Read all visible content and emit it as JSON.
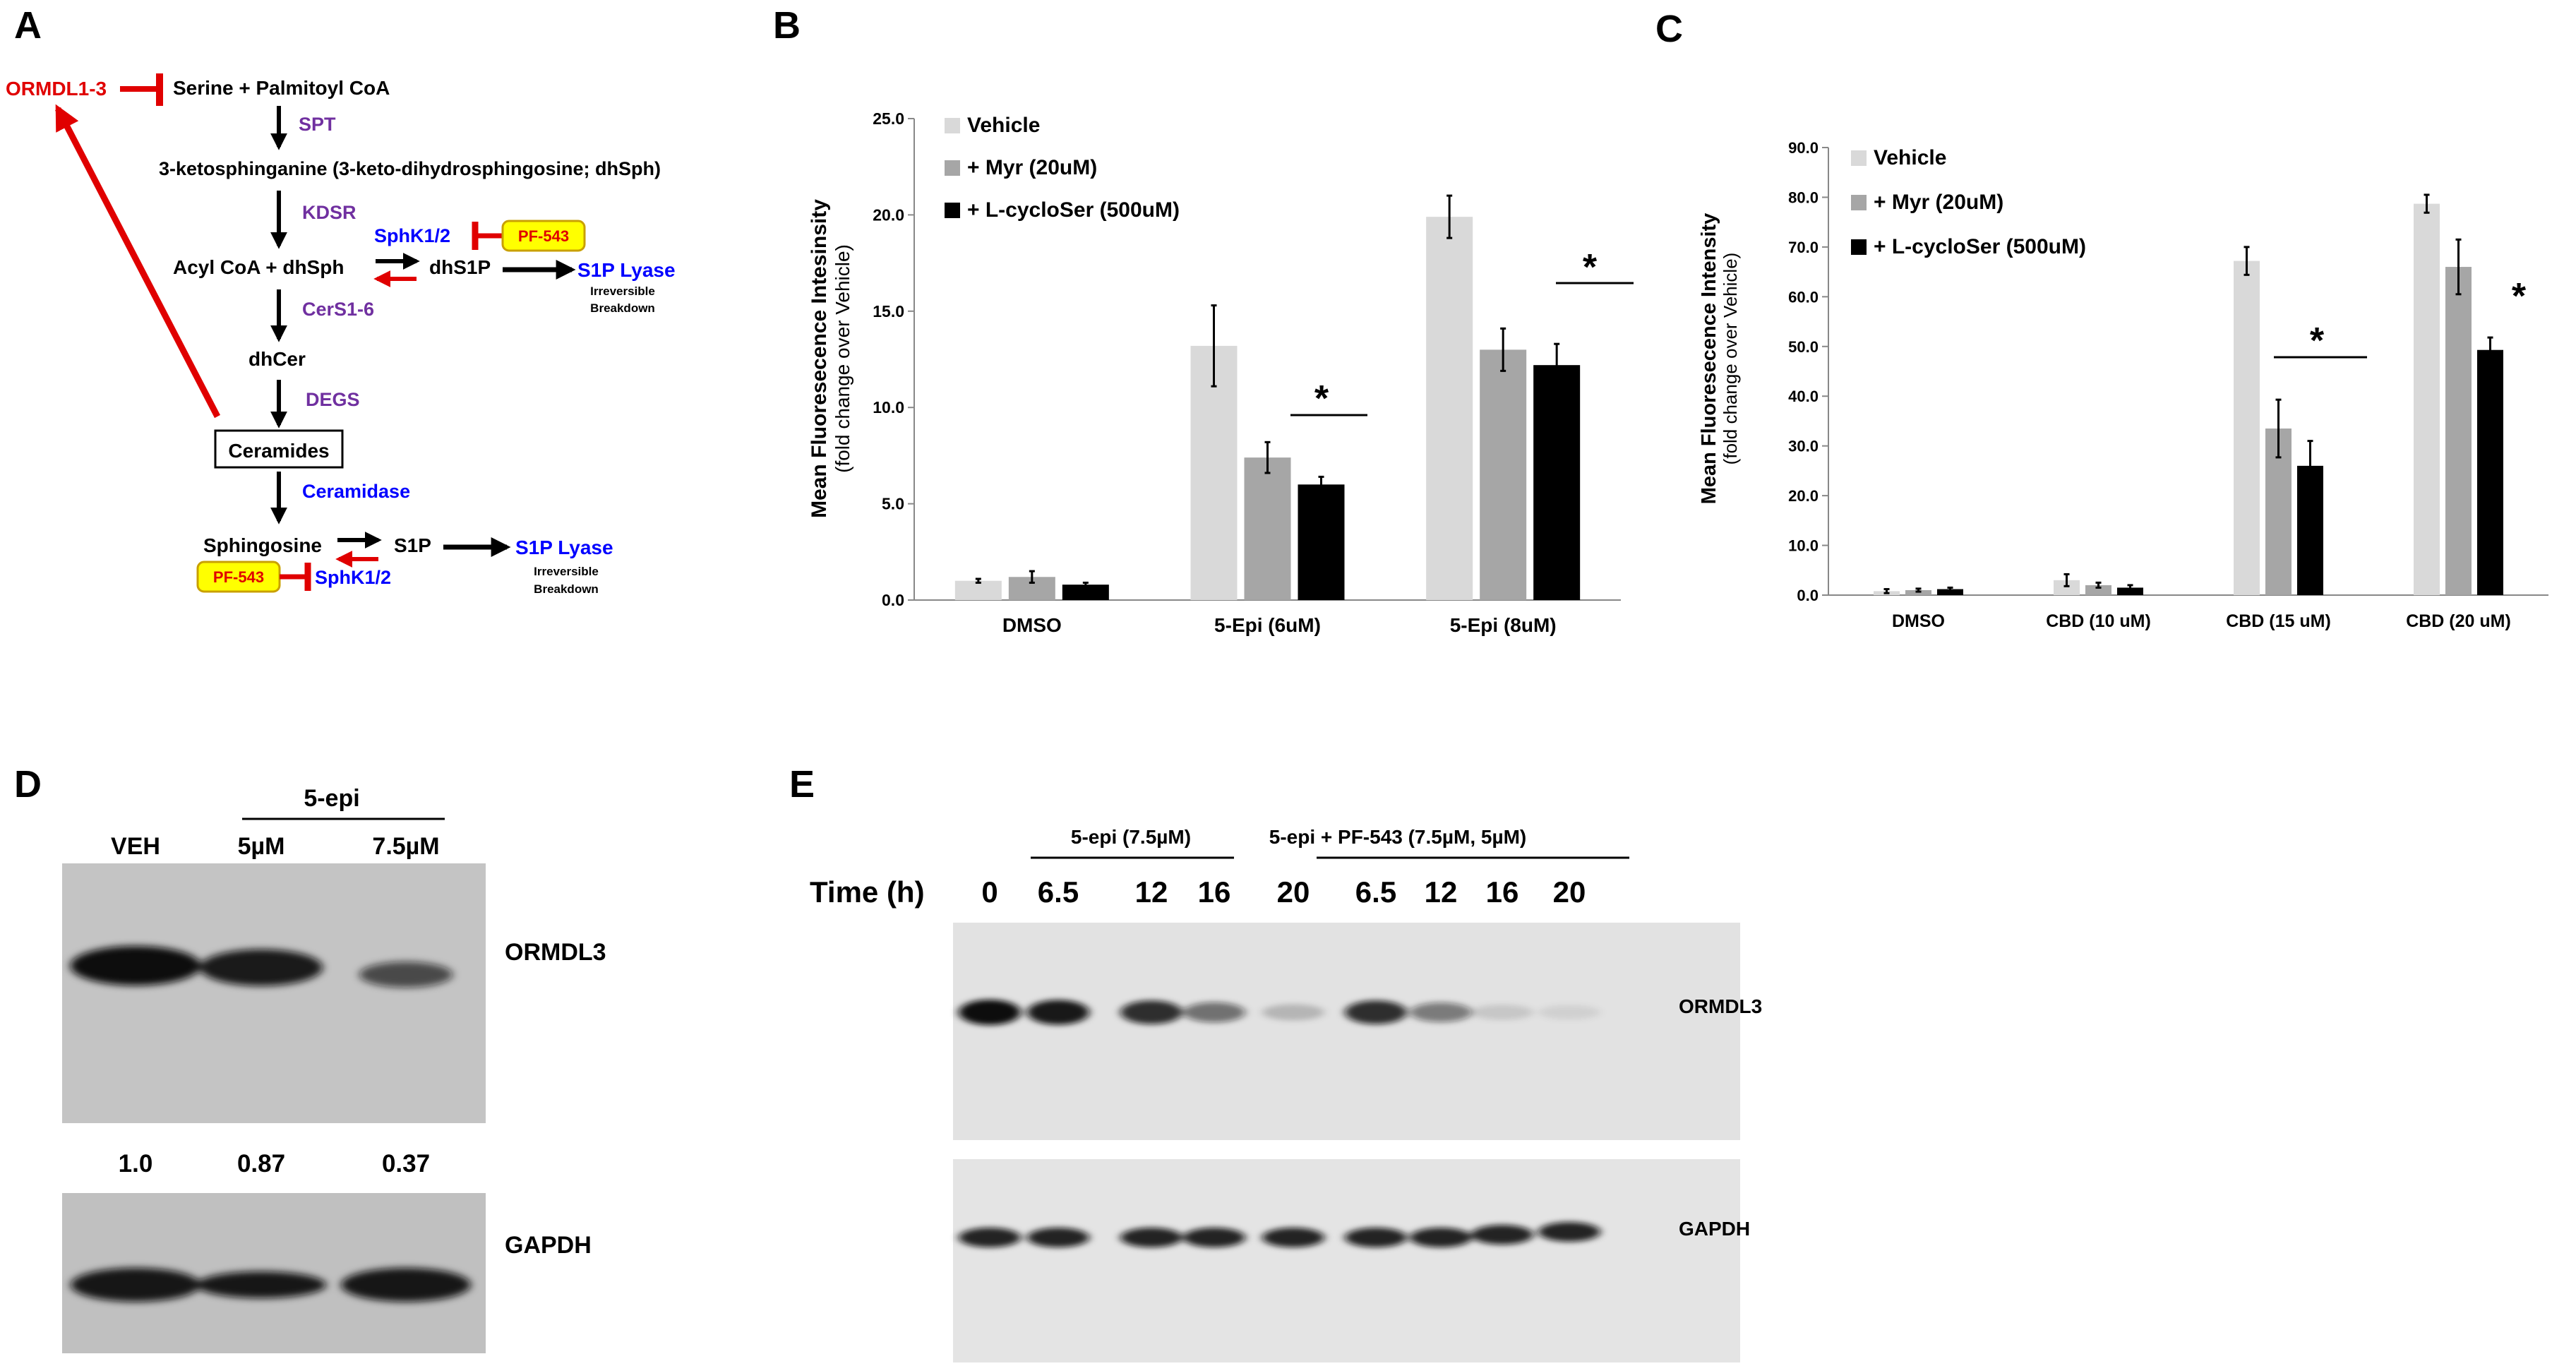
{
  "panel_labels": {
    "A": "A",
    "B": "B",
    "C": "C",
    "D": "D",
    "E": "E"
  },
  "pathway": {
    "inhibitor_ormdl": "ORMDL1-3",
    "substrate": "Serine + Palmitoyl CoA",
    "enzyme_spt": "SPT",
    "ketosphinganine": "3-ketosphinganine (3-keto-dihydrosphingosine; dhSph)",
    "enzyme_kdsr": "KDSR",
    "sphk_top": "SphK1/2",
    "pf543_top": "PF-543",
    "acyl_dhsph": "Acyl CoA + dhSph",
    "dhs1p": "dhS1P",
    "s1p_lyase_top": "S1P Lyase",
    "irreversible_top": "Irreversible",
    "breakdown_top": "Breakdown",
    "enzyme_cers": "CerS1-6",
    "dhcer": "dhCer",
    "enzyme_degs": "DEGS",
    "ceramides": "Ceramides",
    "enzyme_ceramidase": "Ceramidase",
    "sphingosine": "Sphingosine",
    "s1p": "S1P",
    "s1p_lyase_bottom": "S1P Lyase",
    "irreversible_bottom": "Irreversible",
    "breakdown_bottom": "Breakdown",
    "pf543_bottom": "PF-543",
    "sphk_bottom": "SphK1/2"
  },
  "chart_data": [
    {
      "type": "bar",
      "panel": "B",
      "categories": [
        "DMSO",
        "5-Epi (6uM)",
        "5-Epi (8uM)"
      ],
      "series": [
        {
          "name": "Vehicle",
          "values": [
            1.0,
            13.2,
            19.9
          ],
          "errors": [
            0.1,
            2.1,
            1.1
          ],
          "color": "#d9d9d9"
        },
        {
          "name": "+ Myr (20uM)",
          "values": [
            1.2,
            7.4,
            13.0
          ],
          "errors": [
            0.3,
            0.8,
            1.1
          ],
          "color": "#a6a6a6"
        },
        {
          "name": "+ L-cycloSer (500uM)",
          "values": [
            0.8,
            6.0,
            12.2
          ],
          "errors": [
            0.1,
            0.4,
            1.1
          ],
          "color": "#000000"
        }
      ],
      "ylabel": "Mean Fluoresecence Intesinsity",
      "ylabel_sub": "(fold change over Vehicle)",
      "ylim": [
        0,
        25
      ],
      "yticks": [
        "0.0",
        "5.0",
        "10.0",
        "15.0",
        "20.0",
        "25.0"
      ],
      "significance": [
        "*",
        "*"
      ]
    },
    {
      "type": "bar",
      "panel": "C",
      "categories": [
        "DMSO",
        "CBD (10 uM)",
        "CBD (15 uM)",
        "CBD (20 uM)"
      ],
      "series": [
        {
          "name": "Vehicle",
          "values": [
            0.8,
            3.0,
            67.2,
            78.7
          ],
          "errors": [
            0.4,
            1.2,
            2.8,
            1.8
          ],
          "color": "#d9d9d9"
        },
        {
          "name": "+ Myr (20uM)",
          "values": [
            1.0,
            2.0,
            33.5,
            66.0
          ],
          "errors": [
            0.3,
            0.5,
            5.8,
            5.5
          ],
          "color": "#a6a6a6"
        },
        {
          "name": "+ L-cycloSer (500uM)",
          "values": [
            1.2,
            1.5,
            26.0,
            49.3
          ],
          "errors": [
            0.3,
            0.5,
            5.0,
            2.5
          ],
          "color": "#000000"
        }
      ],
      "ylabel": "Mean Fluoresecence Intensity",
      "ylabel_sub": "(fold change over Vehicle)",
      "ylim": [
        0,
        90
      ],
      "yticks": [
        "0.0",
        "10.0",
        "20.0",
        "30.0",
        "40.0",
        "50.0",
        "60.0",
        "70.0",
        "80.0",
        "90.0"
      ],
      "significance": [
        "*",
        "*"
      ]
    }
  ],
  "blot_d": {
    "group_label": "5-epi",
    "lanes": [
      "VEH",
      "5µM",
      "7.5µM"
    ],
    "protein_top": "ORMDL3",
    "protein_bottom": "GAPDH",
    "quantification": [
      "1.0",
      "0.87",
      "0.37"
    ],
    "ormdl3_band_intensity": [
      1.0,
      0.87,
      0.37
    ]
  },
  "blot_e": {
    "group_1": "5-epi (7.5µM)",
    "group_2": "5-epi + PF-543 (7.5µM, 5µM)",
    "time_label": "Time (h)",
    "times": [
      "0",
      "6.5",
      "12",
      "16",
      "20",
      "6.5",
      "12",
      "16",
      "20"
    ],
    "protein_top": "ORMDL3",
    "protein_bottom": "GAPDH",
    "ormdl3_band_intensity": [
      1.0,
      0.95,
      0.85,
      0.55,
      0.2,
      0.85,
      0.5,
      0.12,
      0.05
    ]
  }
}
